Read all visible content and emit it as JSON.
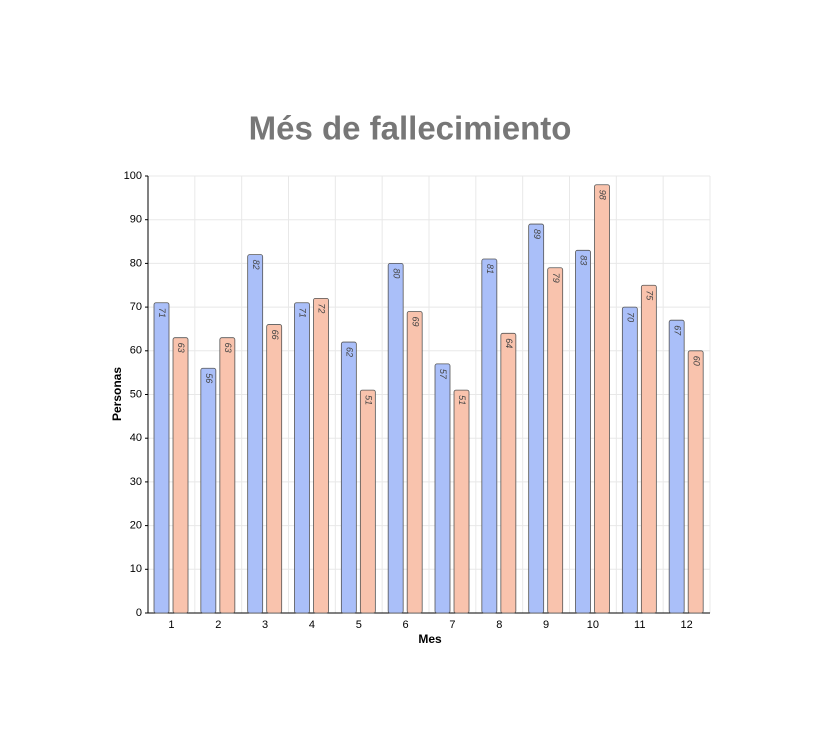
{
  "chart_data": {
    "type": "bar",
    "title": "Més de fallecimiento",
    "x_label": "Mes",
    "y_label": "Personas",
    "categories": [
      "1",
      "2",
      "3",
      "4",
      "5",
      "6",
      "7",
      "8",
      "9",
      "10",
      "11",
      "12"
    ],
    "series": [
      {
        "color": "#aabff9",
        "values": [
          71,
          56,
          82,
          71,
          62,
          80,
          57,
          81,
          89,
          83,
          70,
          67
        ]
      },
      {
        "color": "#f9c3ad",
        "values": [
          63,
          63,
          66,
          72,
          51,
          69,
          51,
          64,
          79,
          98,
          75,
          60
        ]
      }
    ],
    "ylim": [
      0,
      100
    ],
    "yticks": [
      0,
      10,
      20,
      30,
      40,
      50,
      60,
      70,
      80,
      90,
      100
    ],
    "grid": true
  }
}
